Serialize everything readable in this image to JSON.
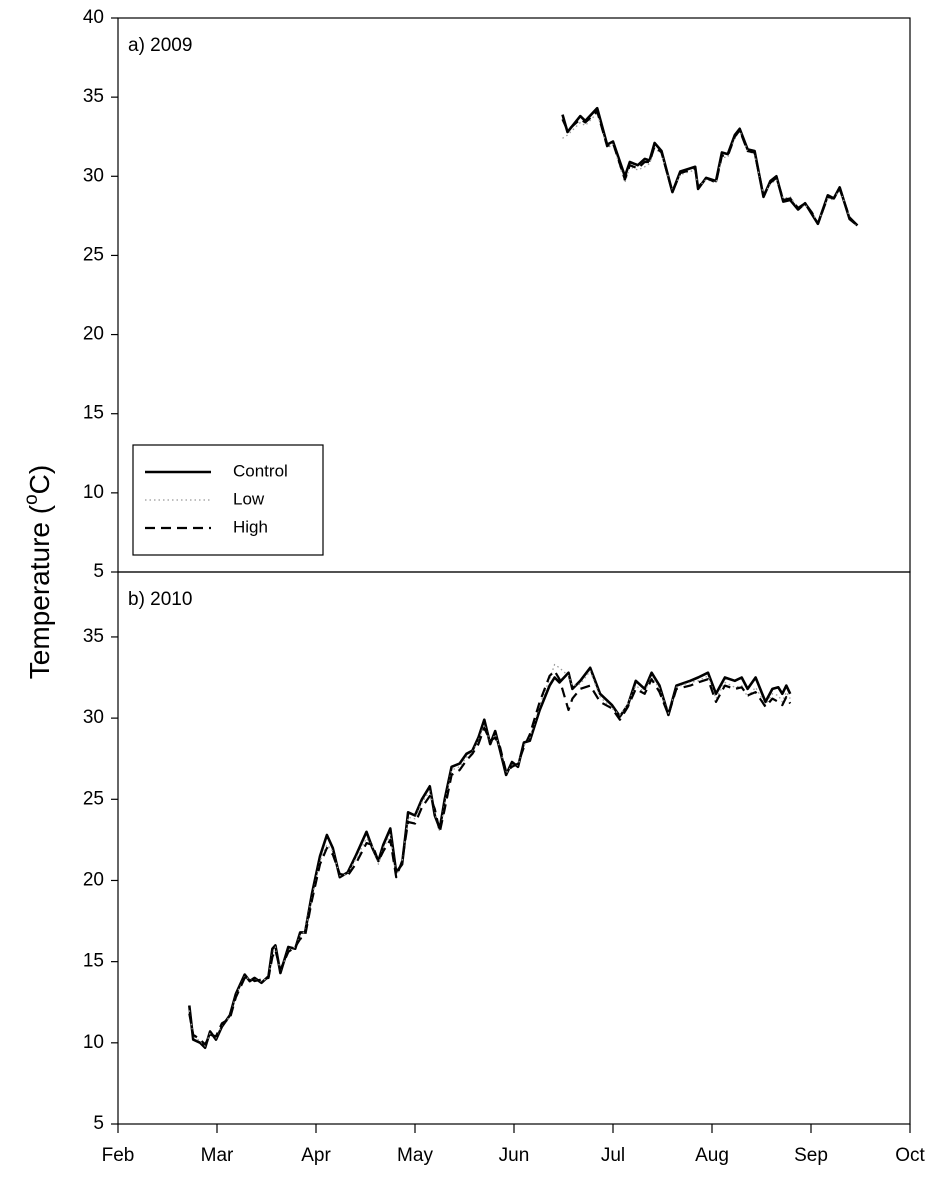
{
  "chart_data": [
    {
      "type": "line",
      "title": "a) 2009",
      "ylabel": [
        "Temperature (",
        "o",
        "C)"
      ],
      "xlim": [
        0,
        8
      ],
      "ylim": [
        5,
        40
      ],
      "yticks": [
        5,
        10,
        15,
        20,
        25,
        30,
        35,
        40
      ],
      "legend": "lower left",
      "x": [
        4.49,
        4.54,
        4.67,
        4.72,
        4.84,
        4.94,
        5.0,
        5.12,
        5.17,
        5.25,
        5.32,
        5.37,
        5.42,
        5.49,
        5.6,
        5.68,
        5.78,
        5.83,
        5.86,
        5.94,
        6.04,
        6.1,
        6.16,
        6.23,
        6.28,
        6.36,
        6.43,
        6.52,
        6.59,
        6.65,
        6.72,
        6.79,
        6.87,
        6.94,
        7.01,
        7.07,
        7.17,
        7.23,
        7.29,
        7.39,
        7.47
      ],
      "series": [
        {
          "name": "Control",
          "color": "#000000",
          "dash": "solid",
          "values": [
            33.9,
            32.8,
            33.8,
            33.5,
            34.3,
            32.0,
            32.2,
            30.0,
            30.9,
            30.7,
            31.1,
            31.0,
            32.1,
            31.6,
            29.0,
            30.3,
            30.5,
            30.6,
            29.2,
            29.9,
            29.7,
            31.5,
            31.4,
            32.6,
            33.0,
            31.7,
            31.6,
            28.7,
            29.7,
            30.0,
            28.4,
            28.5,
            27.9,
            28.3,
            27.6,
            27.0,
            28.8,
            28.6,
            29.3,
            27.3,
            26.9
          ]
        },
        {
          "name": "Low",
          "color": "#999999",
          "dash": "dotted",
          "values": [
            32.4,
            32.6,
            33.4,
            33.2,
            34.0,
            31.8,
            32.0,
            29.6,
            30.6,
            30.4,
            30.6,
            30.8,
            31.8,
            31.4,
            29.1,
            30.1,
            30.3,
            30.4,
            29.3,
            29.8,
            29.6,
            31.2,
            31.2,
            32.4,
            32.9,
            31.6,
            31.4,
            28.8,
            29.5,
            29.8,
            28.6,
            28.7,
            28.0,
            28.2,
            27.7,
            27.1,
            28.6,
            28.5,
            29.2,
            27.4,
            26.8
          ]
        },
        {
          "name": "High",
          "color": "#000000",
          "dash": "dashed",
          "values": [
            33.6,
            32.9,
            33.6,
            33.4,
            34.1,
            31.9,
            32.1,
            29.8,
            30.7,
            30.5,
            30.9,
            30.9,
            31.9,
            31.5,
            29.0,
            30.2,
            30.4,
            30.5,
            29.3,
            29.9,
            29.6,
            31.3,
            31.3,
            32.5,
            32.9,
            31.6,
            31.5,
            28.8,
            29.6,
            29.9,
            28.5,
            28.6,
            28.0,
            28.3,
            27.7,
            27.0,
            28.7,
            28.6,
            29.2,
            27.4,
            26.9
          ]
        }
      ]
    },
    {
      "type": "line",
      "title": "b) 2010",
      "xlim": [
        0,
        8
      ],
      "xticks": [
        {
          "value": 0,
          "label": "Feb"
        },
        {
          "value": 1,
          "label": "Mar"
        },
        {
          "value": 2,
          "label": "Apr"
        },
        {
          "value": 3,
          "label": "May"
        },
        {
          "value": 4,
          "label": "Jun"
        },
        {
          "value": 5,
          "label": "Jul"
        },
        {
          "value": 6,
          "label": "Aug"
        },
        {
          "value": 7,
          "label": "Sep"
        },
        {
          "value": 8,
          "label": "Oct"
        }
      ],
      "ylim": [
        5,
        39
      ],
      "yticks": [
        5,
        10,
        15,
        20,
        25,
        30,
        35
      ],
      "x": [
        0.72,
        0.76,
        0.83,
        0.88,
        0.93,
        0.99,
        1.05,
        1.13,
        1.19,
        1.28,
        1.33,
        1.38,
        1.45,
        1.52,
        1.56,
        1.59,
        1.64,
        1.72,
        1.79,
        1.84,
        1.89,
        1.96,
        2.04,
        2.11,
        2.17,
        2.24,
        2.32,
        2.4,
        2.51,
        2.57,
        2.63,
        2.68,
        2.75,
        2.81,
        2.87,
        2.93,
        3.0,
        3.07,
        3.15,
        3.2,
        3.25,
        3.3,
        3.37,
        3.45,
        3.52,
        3.58,
        3.64,
        3.7,
        3.76,
        3.81,
        3.86,
        3.92,
        3.98,
        4.04,
        4.1,
        4.16,
        4.26,
        4.36,
        4.41,
        4.46,
        4.55,
        4.59,
        4.67,
        4.77,
        4.87,
        4.99,
        5.07,
        5.15,
        5.23,
        5.32,
        5.39,
        5.47,
        5.56,
        5.64,
        5.78,
        5.86,
        5.96,
        6.04,
        6.13,
        6.23,
        6.3,
        6.36,
        6.44,
        6.54,
        6.61,
        6.67,
        6.71,
        6.75,
        6.79
      ],
      "series": [
        {
          "name": "Control",
          "color": "#000000",
          "dash": "solid",
          "values": [
            12.3,
            10.2,
            10.0,
            9.7,
            10.7,
            10.2,
            11.0,
            11.7,
            13.0,
            14.2,
            13.8,
            14.0,
            13.7,
            14.1,
            15.8,
            16.0,
            14.3,
            15.9,
            15.8,
            16.8,
            16.8,
            19.2,
            21.5,
            22.8,
            22.0,
            20.2,
            20.5,
            21.5,
            23.0,
            22.0,
            21.2,
            22.2,
            23.2,
            20.5,
            21.0,
            24.2,
            24.0,
            25.0,
            25.8,
            24.0,
            23.2,
            25.0,
            27.0,
            27.2,
            27.8,
            28.0,
            28.8,
            29.9,
            28.4,
            29.2,
            28.0,
            26.5,
            27.3,
            27.0,
            28.5,
            28.6,
            30.5,
            32.0,
            32.5,
            32.2,
            32.8,
            31.8,
            32.3,
            33.1,
            31.5,
            30.8,
            30.1,
            30.8,
            32.3,
            31.8,
            32.8,
            32.0,
            30.2,
            32.0,
            32.3,
            32.5,
            32.8,
            31.5,
            32.5,
            32.3,
            32.5,
            31.8,
            32.5,
            31.0,
            31.8,
            31.9,
            31.5,
            32.0,
            31.5
          ]
        },
        {
          "name": "Low",
          "color": "#999999",
          "dash": "dotted",
          "values": [
            12.0,
            10.4,
            10.1,
            9.8,
            10.6,
            10.3,
            11.1,
            11.6,
            12.9,
            14.1,
            13.9,
            13.9,
            13.8,
            14.0,
            15.5,
            15.9,
            14.4,
            15.7,
            15.9,
            16.6,
            16.9,
            19.0,
            21.2,
            22.2,
            21.8,
            20.3,
            20.4,
            21.3,
            22.6,
            22.1,
            21.0,
            22.0,
            22.8,
            20.3,
            21.1,
            23.9,
            23.8,
            24.8,
            25.5,
            24.2,
            23.0,
            24.7,
            26.8,
            27.0,
            27.6,
            27.9,
            28.6,
            29.6,
            28.5,
            29.0,
            28.1,
            26.6,
            27.1,
            27.1,
            28.3,
            28.8,
            30.8,
            32.4,
            33.3,
            33.1,
            32.6,
            32.0,
            32.1,
            32.9,
            31.3,
            30.6,
            30.2,
            30.9,
            32.0,
            31.6,
            32.6,
            31.8,
            30.3,
            31.9,
            32.2,
            32.3,
            32.6,
            31.2,
            32.2,
            31.9,
            32.0,
            31.3,
            31.9,
            30.8,
            31.5,
            31.4,
            31.0,
            31.6,
            31.2
          ]
        },
        {
          "name": "High",
          "color": "#000000",
          "dash": "dashed",
          "values": [
            11.8,
            10.5,
            10.2,
            9.9,
            10.5,
            10.4,
            11.2,
            11.5,
            12.8,
            14.0,
            14.0,
            13.8,
            13.9,
            14.0,
            15.3,
            15.7,
            14.5,
            15.6,
            15.9,
            16.4,
            16.6,
            18.8,
            21.0,
            22.0,
            21.6,
            20.4,
            20.3,
            21.0,
            22.3,
            22.2,
            21.2,
            21.8,
            22.5,
            20.2,
            21.2,
            23.6,
            23.5,
            24.5,
            25.2,
            24.4,
            23.0,
            24.4,
            26.5,
            26.8,
            27.4,
            27.8,
            28.4,
            29.4,
            28.6,
            28.8,
            28.2,
            26.7,
            27.0,
            27.2,
            28.2,
            29.0,
            31.0,
            32.6,
            32.9,
            32.4,
            30.5,
            31.2,
            31.8,
            32.0,
            31.0,
            30.6,
            29.9,
            30.7,
            31.8,
            31.5,
            32.4,
            31.6,
            30.2,
            31.8,
            32.0,
            32.2,
            32.4,
            31.0,
            32.0,
            31.8,
            31.9,
            31.4,
            31.6,
            30.7,
            31.2,
            31.0,
            30.8,
            31.3,
            30.9
          ]
        }
      ]
    }
  ]
}
